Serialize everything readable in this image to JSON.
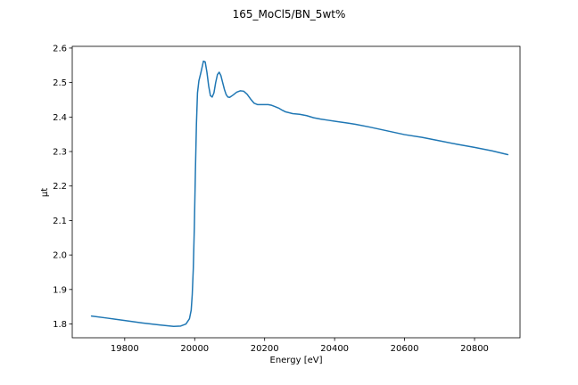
{
  "chart_data": {
    "type": "line",
    "title": "165_MoCl5/BN_5wt%",
    "xlabel": "Energy [eV]",
    "ylabel": "μt",
    "xlim": [
      19650,
      20930
    ],
    "ylim": [
      1.76,
      2.605
    ],
    "x_ticks": [
      19800,
      20000,
      20200,
      20400,
      20600,
      20800
    ],
    "x_tick_labels": [
      "19800",
      "20000",
      "20200",
      "20400",
      "20600",
      "20800"
    ],
    "y_ticks": [
      1.8,
      1.9,
      2.0,
      2.1,
      2.2,
      2.3,
      2.4,
      2.5,
      2.6
    ],
    "y_tick_labels": [
      "1.8",
      "1.9",
      "2.0",
      "2.1",
      "2.2",
      "2.3",
      "2.4",
      "2.5",
      "2.6"
    ],
    "grid": false,
    "legend": "none",
    "series": [
      {
        "color": "#1f77b4",
        "x": [
          19705,
          19750,
          19800,
          19850,
          19900,
          19940,
          19960,
          19975,
          19985,
          19990,
          19993,
          19996,
          19999,
          20002,
          20005,
          20008,
          20012,
          20018,
          20025,
          20030,
          20035,
          20040,
          20045,
          20050,
          20055,
          20060,
          20065,
          20070,
          20075,
          20080,
          20085,
          20090,
          20095,
          20100,
          20110,
          20120,
          20130,
          20140,
          20150,
          20160,
          20170,
          20180,
          20190,
          20200,
          20210,
          20220,
          20230,
          20240,
          20250,
          20260,
          20280,
          20300,
          20320,
          20340,
          20360,
          20380,
          20400,
          20420,
          20440,
          20460,
          20500,
          20550,
          20600,
          20650,
          20700,
          20750,
          20800,
          20850,
          20895
        ],
        "y": [
          1.823,
          1.817,
          1.81,
          1.803,
          1.797,
          1.793,
          1.794,
          1.8,
          1.815,
          1.84,
          1.885,
          1.96,
          2.08,
          2.24,
          2.38,
          2.47,
          2.505,
          2.53,
          2.562,
          2.56,
          2.53,
          2.49,
          2.462,
          2.458,
          2.47,
          2.5,
          2.523,
          2.53,
          2.52,
          2.5,
          2.48,
          2.465,
          2.458,
          2.457,
          2.464,
          2.472,
          2.476,
          2.475,
          2.466,
          2.452,
          2.44,
          2.436,
          2.436,
          2.436,
          2.436,
          2.434,
          2.43,
          2.426,
          2.42,
          2.415,
          2.41,
          2.408,
          2.404,
          2.398,
          2.394,
          2.391,
          2.388,
          2.385,
          2.382,
          2.379,
          2.371,
          2.36,
          2.349,
          2.341,
          2.331,
          2.321,
          2.312,
          2.302,
          2.291
        ]
      }
    ]
  }
}
